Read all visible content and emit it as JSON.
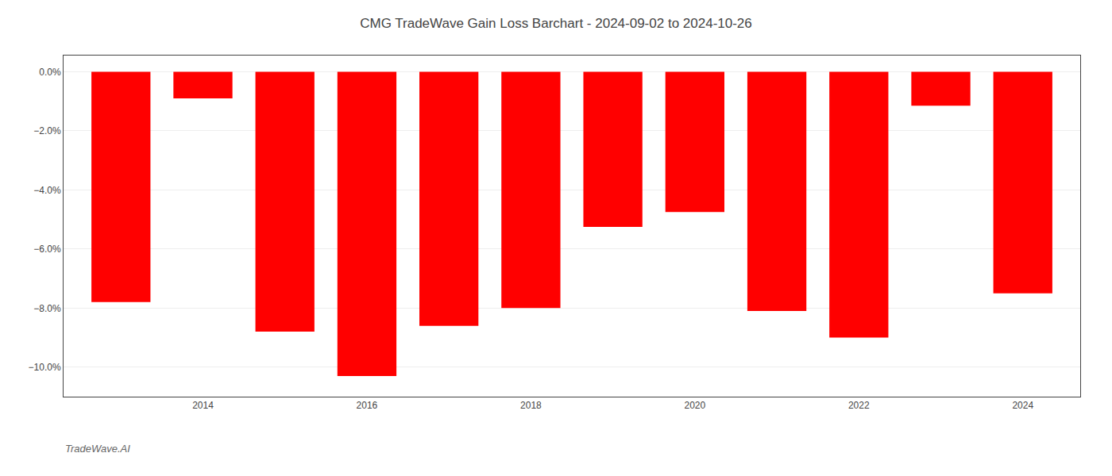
{
  "chart_data": {
    "type": "bar",
    "title": "CMG TradeWave Gain Loss Barchart - 2024-09-02 to 2024-10-26",
    "annotations": [
      "TradeWave.AI"
    ],
    "x": [
      2013,
      2014,
      2015,
      2016,
      2017,
      2018,
      2019,
      2020,
      2021,
      2022,
      2023,
      2024
    ],
    "values": [
      -7.8,
      -0.9,
      -8.8,
      -10.3,
      -8.6,
      -8.0,
      -5.25,
      -4.75,
      -8.1,
      -9.0,
      -1.15,
      -7.5
    ],
    "color": "#ff0000",
    "xlim": [
      2012.3,
      2024.7
    ],
    "xticks": [
      2014,
      2016,
      2018,
      2020,
      2022,
      2024
    ],
    "ylim": [
      -11.0,
      0.55
    ],
    "yticks": [
      {
        "value": 0.0,
        "label": "0.0%"
      },
      {
        "value": -2.0,
        "label": "−2.0%"
      },
      {
        "value": -4.0,
        "label": "−4.0%"
      },
      {
        "value": -6.0,
        "label": "−6.0%"
      },
      {
        "value": -8.0,
        "label": "−8.0%"
      },
      {
        "value": -10.0,
        "label": "−10.0%"
      }
    ],
    "grid": "y"
  }
}
